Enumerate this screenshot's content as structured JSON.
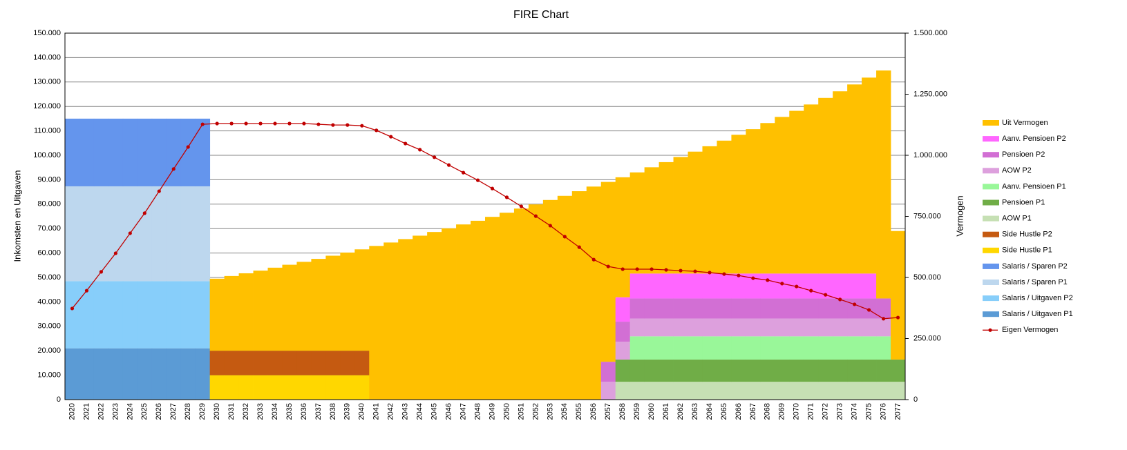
{
  "chart_data": {
    "type": "bar",
    "stacked": true,
    "title": "FIRE Chart",
    "y_label": "Inkomsten en Uitgaven",
    "y2_label": "Vermogen",
    "grid": true,
    "legend": "right",
    "categories": [
      "2020",
      "2021",
      "2022",
      "2023",
      "2024",
      "2025",
      "2026",
      "2027",
      "2028",
      "2029",
      "2030",
      "2031",
      "2032",
      "2033",
      "2034",
      "2035",
      "2036",
      "2037",
      "2038",
      "2039",
      "2040",
      "2041",
      "2042",
      "2043",
      "2044",
      "2045",
      "2046",
      "2047",
      "2048",
      "2049",
      "2050",
      "2051",
      "2052",
      "2053",
      "2054",
      "2055",
      "2056",
      "2057",
      "2058",
      "2059",
      "2060",
      "2061",
      "2062",
      "2063",
      "2064",
      "2065",
      "2066",
      "2067",
      "2068",
      "2069",
      "2070",
      "2071",
      "2072",
      "2073",
      "2074",
      "2075",
      "2076",
      "2077"
    ],
    "ylim": [
      0,
      150000
    ],
    "yticks": [
      0,
      {
        "value": 10000,
        "label": "10.000"
      },
      {
        "value": 20000,
        "label": "20.000"
      },
      {
        "value": 30000,
        "label": "30.000"
      },
      {
        "value": 40000,
        "label": "40.000"
      },
      {
        "value": 50000,
        "label": "50.000"
      },
      {
        "value": 60000,
        "label": "60.000"
      },
      {
        "value": 70000,
        "label": "70.000"
      },
      {
        "value": 80000,
        "label": "80.000"
      },
      {
        "value": 90000,
        "label": "90.000"
      },
      {
        "value": 100000,
        "label": "100.000"
      },
      {
        "value": 110000,
        "label": "110.000"
      },
      {
        "value": 120000,
        "label": "120.000"
      },
      {
        "value": 130000,
        "label": "130.000"
      },
      {
        "value": 140000,
        "label": "140.000"
      },
      {
        "value": 150000,
        "label": "150.000"
      }
    ],
    "y2lim": [
      0,
      1500000
    ],
    "y2ticks": [
      0,
      {
        "value": 250000,
        "label": "250.000"
      },
      {
        "value": 500000,
        "label": "500.000"
      },
      {
        "value": 750000,
        "label": "750.000"
      },
      {
        "value": 1000000,
        "label": "1.000.000"
      },
      {
        "value": 1250000,
        "label": "1.250.000"
      },
      {
        "value": 1500000,
        "label": "1.500.000"
      }
    ],
    "series": [
      {
        "name": "Salaris / Uitgaven P1",
        "color": "#5b9bd5",
        "values": [
          21000,
          21000,
          21000,
          21000,
          21000,
          21000,
          21000,
          21000,
          21000,
          21000,
          0,
          0,
          0,
          0,
          0,
          0,
          0,
          0,
          0,
          0,
          0,
          0,
          0,
          0,
          0,
          0,
          0,
          0,
          0,
          0,
          0,
          0,
          0,
          0,
          0,
          0,
          0,
          0,
          0,
          0,
          0,
          0,
          0,
          0,
          0,
          0,
          0,
          0,
          0,
          0,
          0,
          0,
          0,
          0,
          0,
          0,
          0,
          0
        ]
      },
      {
        "name": "Salaris / Uitgaven P2",
        "color": "#87cefa",
        "values": [
          27500,
          27500,
          27500,
          27500,
          27500,
          27500,
          27500,
          27500,
          27500,
          27500,
          0,
          0,
          0,
          0,
          0,
          0,
          0,
          0,
          0,
          0,
          0,
          0,
          0,
          0,
          0,
          0,
          0,
          0,
          0,
          0,
          0,
          0,
          0,
          0,
          0,
          0,
          0,
          0,
          0,
          0,
          0,
          0,
          0,
          0,
          0,
          0,
          0,
          0,
          0,
          0,
          0,
          0,
          0,
          0,
          0,
          0,
          0,
          0
        ]
      },
      {
        "name": "Salaris / Sparen P1",
        "color": "#bdd7ee",
        "values": [
          38800,
          38800,
          38800,
          38800,
          38800,
          38800,
          38800,
          38800,
          38800,
          38800,
          0,
          0,
          0,
          0,
          0,
          0,
          0,
          0,
          0,
          0,
          0,
          0,
          0,
          0,
          0,
          0,
          0,
          0,
          0,
          0,
          0,
          0,
          0,
          0,
          0,
          0,
          0,
          0,
          0,
          0,
          0,
          0,
          0,
          0,
          0,
          0,
          0,
          0,
          0,
          0,
          0,
          0,
          0,
          0,
          0,
          0,
          0,
          0
        ]
      },
      {
        "name": "Salaris / Sparen P2",
        "color": "#6495ed",
        "values": [
          27700,
          27700,
          27700,
          27700,
          27700,
          27700,
          27700,
          27700,
          27700,
          27700,
          0,
          0,
          0,
          0,
          0,
          0,
          0,
          0,
          0,
          0,
          0,
          0,
          0,
          0,
          0,
          0,
          0,
          0,
          0,
          0,
          0,
          0,
          0,
          0,
          0,
          0,
          0,
          0,
          0,
          0,
          0,
          0,
          0,
          0,
          0,
          0,
          0,
          0,
          0,
          0,
          0,
          0,
          0,
          0,
          0,
          0,
          0,
          0
        ]
      },
      {
        "name": "Side Hustle P1",
        "color": "#ffd700",
        "values": [
          0,
          0,
          0,
          0,
          0,
          0,
          0,
          0,
          0,
          0,
          10000,
          10000,
          10000,
          10000,
          10000,
          10000,
          10000,
          10000,
          10000,
          10000,
          10000,
          0,
          0,
          0,
          0,
          0,
          0,
          0,
          0,
          0,
          0,
          0,
          0,
          0,
          0,
          0,
          0,
          0,
          0,
          0,
          0,
          0,
          0,
          0,
          0,
          0,
          0,
          0,
          0,
          0,
          0,
          0,
          0,
          0,
          0,
          0,
          0,
          0
        ]
      },
      {
        "name": "Side Hustle P2",
        "color": "#c55a11",
        "values": [
          0,
          0,
          0,
          0,
          0,
          0,
          0,
          0,
          0,
          0,
          10000,
          10000,
          10000,
          10000,
          10000,
          10000,
          10000,
          10000,
          10000,
          10000,
          10000,
          0,
          0,
          0,
          0,
          0,
          0,
          0,
          0,
          0,
          0,
          0,
          0,
          0,
          0,
          0,
          0,
          0,
          0,
          0,
          0,
          0,
          0,
          0,
          0,
          0,
          0,
          0,
          0,
          0,
          0,
          0,
          0,
          0,
          0,
          0,
          0,
          0
        ]
      },
      {
        "name": "AOW P1",
        "color": "#c6e0b4",
        "values": [
          0,
          0,
          0,
          0,
          0,
          0,
          0,
          0,
          0,
          0,
          0,
          0,
          0,
          0,
          0,
          0,
          0,
          0,
          0,
          0,
          0,
          0,
          0,
          0,
          0,
          0,
          0,
          0,
          0,
          0,
          0,
          0,
          0,
          0,
          0,
          0,
          0,
          0,
          7300,
          7300,
          7300,
          7300,
          7300,
          7300,
          7300,
          7300,
          7300,
          7300,
          7300,
          7300,
          7300,
          7300,
          7300,
          7300,
          7300,
          7300,
          7300,
          7300
        ]
      },
      {
        "name": "Pensioen P1",
        "color": "#70ad47",
        "values": [
          0,
          0,
          0,
          0,
          0,
          0,
          0,
          0,
          0,
          0,
          0,
          0,
          0,
          0,
          0,
          0,
          0,
          0,
          0,
          0,
          0,
          0,
          0,
          0,
          0,
          0,
          0,
          0,
          0,
          0,
          0,
          0,
          0,
          0,
          0,
          0,
          0,
          0,
          9100,
          9100,
          9100,
          9100,
          9100,
          9100,
          9100,
          9100,
          9100,
          9100,
          9100,
          9100,
          9100,
          9100,
          9100,
          9100,
          9100,
          9100,
          9100,
          9100
        ]
      },
      {
        "name": "Aanv. Pensioen P1",
        "color": "#99f799",
        "values": [
          0,
          0,
          0,
          0,
          0,
          0,
          0,
          0,
          0,
          0,
          0,
          0,
          0,
          0,
          0,
          0,
          0,
          0,
          0,
          0,
          0,
          0,
          0,
          0,
          0,
          0,
          0,
          0,
          0,
          0,
          0,
          0,
          0,
          0,
          0,
          0,
          0,
          0,
          0,
          9500,
          9500,
          9500,
          9500,
          9500,
          9500,
          9500,
          9500,
          9500,
          9500,
          9500,
          9500,
          9500,
          9500,
          9500,
          9500,
          9500,
          9500,
          0
        ]
      },
      {
        "name": "AOW P2",
        "color": "#dda0dd",
        "values": [
          0,
          0,
          0,
          0,
          0,
          0,
          0,
          0,
          0,
          0,
          0,
          0,
          0,
          0,
          0,
          0,
          0,
          0,
          0,
          0,
          0,
          0,
          0,
          0,
          0,
          0,
          0,
          0,
          0,
          0,
          0,
          0,
          0,
          0,
          0,
          0,
          0,
          7300,
          7300,
          7300,
          7300,
          7300,
          7300,
          7300,
          7300,
          7300,
          7300,
          7300,
          7300,
          7300,
          7300,
          7300,
          7300,
          7300,
          7300,
          7300,
          7300,
          0
        ]
      },
      {
        "name": "Pensioen P2",
        "color": "#d26fd4",
        "values": [
          0,
          0,
          0,
          0,
          0,
          0,
          0,
          0,
          0,
          0,
          0,
          0,
          0,
          0,
          0,
          0,
          0,
          0,
          0,
          0,
          0,
          0,
          0,
          0,
          0,
          0,
          0,
          0,
          0,
          0,
          0,
          0,
          0,
          0,
          0,
          0,
          0,
          8200,
          8200,
          8200,
          8200,
          8200,
          8200,
          8200,
          8200,
          8200,
          8200,
          8200,
          8200,
          8200,
          8200,
          8200,
          8200,
          8200,
          8200,
          8200,
          8200,
          0
        ]
      },
      {
        "name": "Aanv. Pensioen P2",
        "color": "#ff66ff",
        "values": [
          0,
          0,
          0,
          0,
          0,
          0,
          0,
          0,
          0,
          0,
          0,
          0,
          0,
          0,
          0,
          0,
          0,
          0,
          0,
          0,
          0,
          0,
          0,
          0,
          0,
          0,
          0,
          0,
          0,
          0,
          0,
          0,
          0,
          0,
          0,
          0,
          0,
          0,
          10000,
          10200,
          10200,
          10200,
          10200,
          10200,
          10200,
          10200,
          10200,
          10200,
          10200,
          10200,
          10200,
          10200,
          10200,
          10200,
          10200,
          10200,
          0,
          0
        ]
      },
      {
        "name": "Uit Vermogen",
        "color": "#ffc000",
        "values": [
          0,
          0,
          0,
          0,
          0,
          0,
          0,
          0,
          0,
          0,
          29500,
          30600,
          31700,
          32800,
          34000,
          35200,
          36400,
          37600,
          38900,
          40200,
          41500,
          62900,
          64300,
          65700,
          67100,
          68600,
          70100,
          71700,
          73200,
          74800,
          76500,
          78200,
          79900,
          81700,
          83400,
          85300,
          87200,
          73600,
          49100,
          41400,
          43500,
          45600,
          47700,
          49900,
          52100,
          54400,
          56800,
          59100,
          61600,
          64100,
          66600,
          69200,
          71900,
          74600,
          77400,
          80200,
          93300,
          52600
        ]
      },
      {
        "name": "Eigen Vermogen",
        "color": "#c00000",
        "type": "line",
        "axis": "y2",
        "values": [
          373000,
          446000,
          523000,
          599000,
          681000,
          763000,
          853000,
          944000,
          1034000,
          1127000,
          1130000,
          1130000,
          1130000,
          1130000,
          1130000,
          1130000,
          1130000,
          1127000,
          1124000,
          1124000,
          1121000,
          1102000,
          1076000,
          1048000,
          1023000,
          992000,
          960000,
          929000,
          898000,
          864000,
          828000,
          791000,
          751000,
          712000,
          667000,
          624000,
          573000,
          545000,
          534000,
          534000,
          534000,
          531000,
          528000,
          525000,
          520000,
          514000,
          508000,
          497000,
          489000,
          475000,
          463000,
          446000,
          429000,
          410000,
          390000,
          367000,
          331000,
          336000
        ]
      }
    ]
  }
}
